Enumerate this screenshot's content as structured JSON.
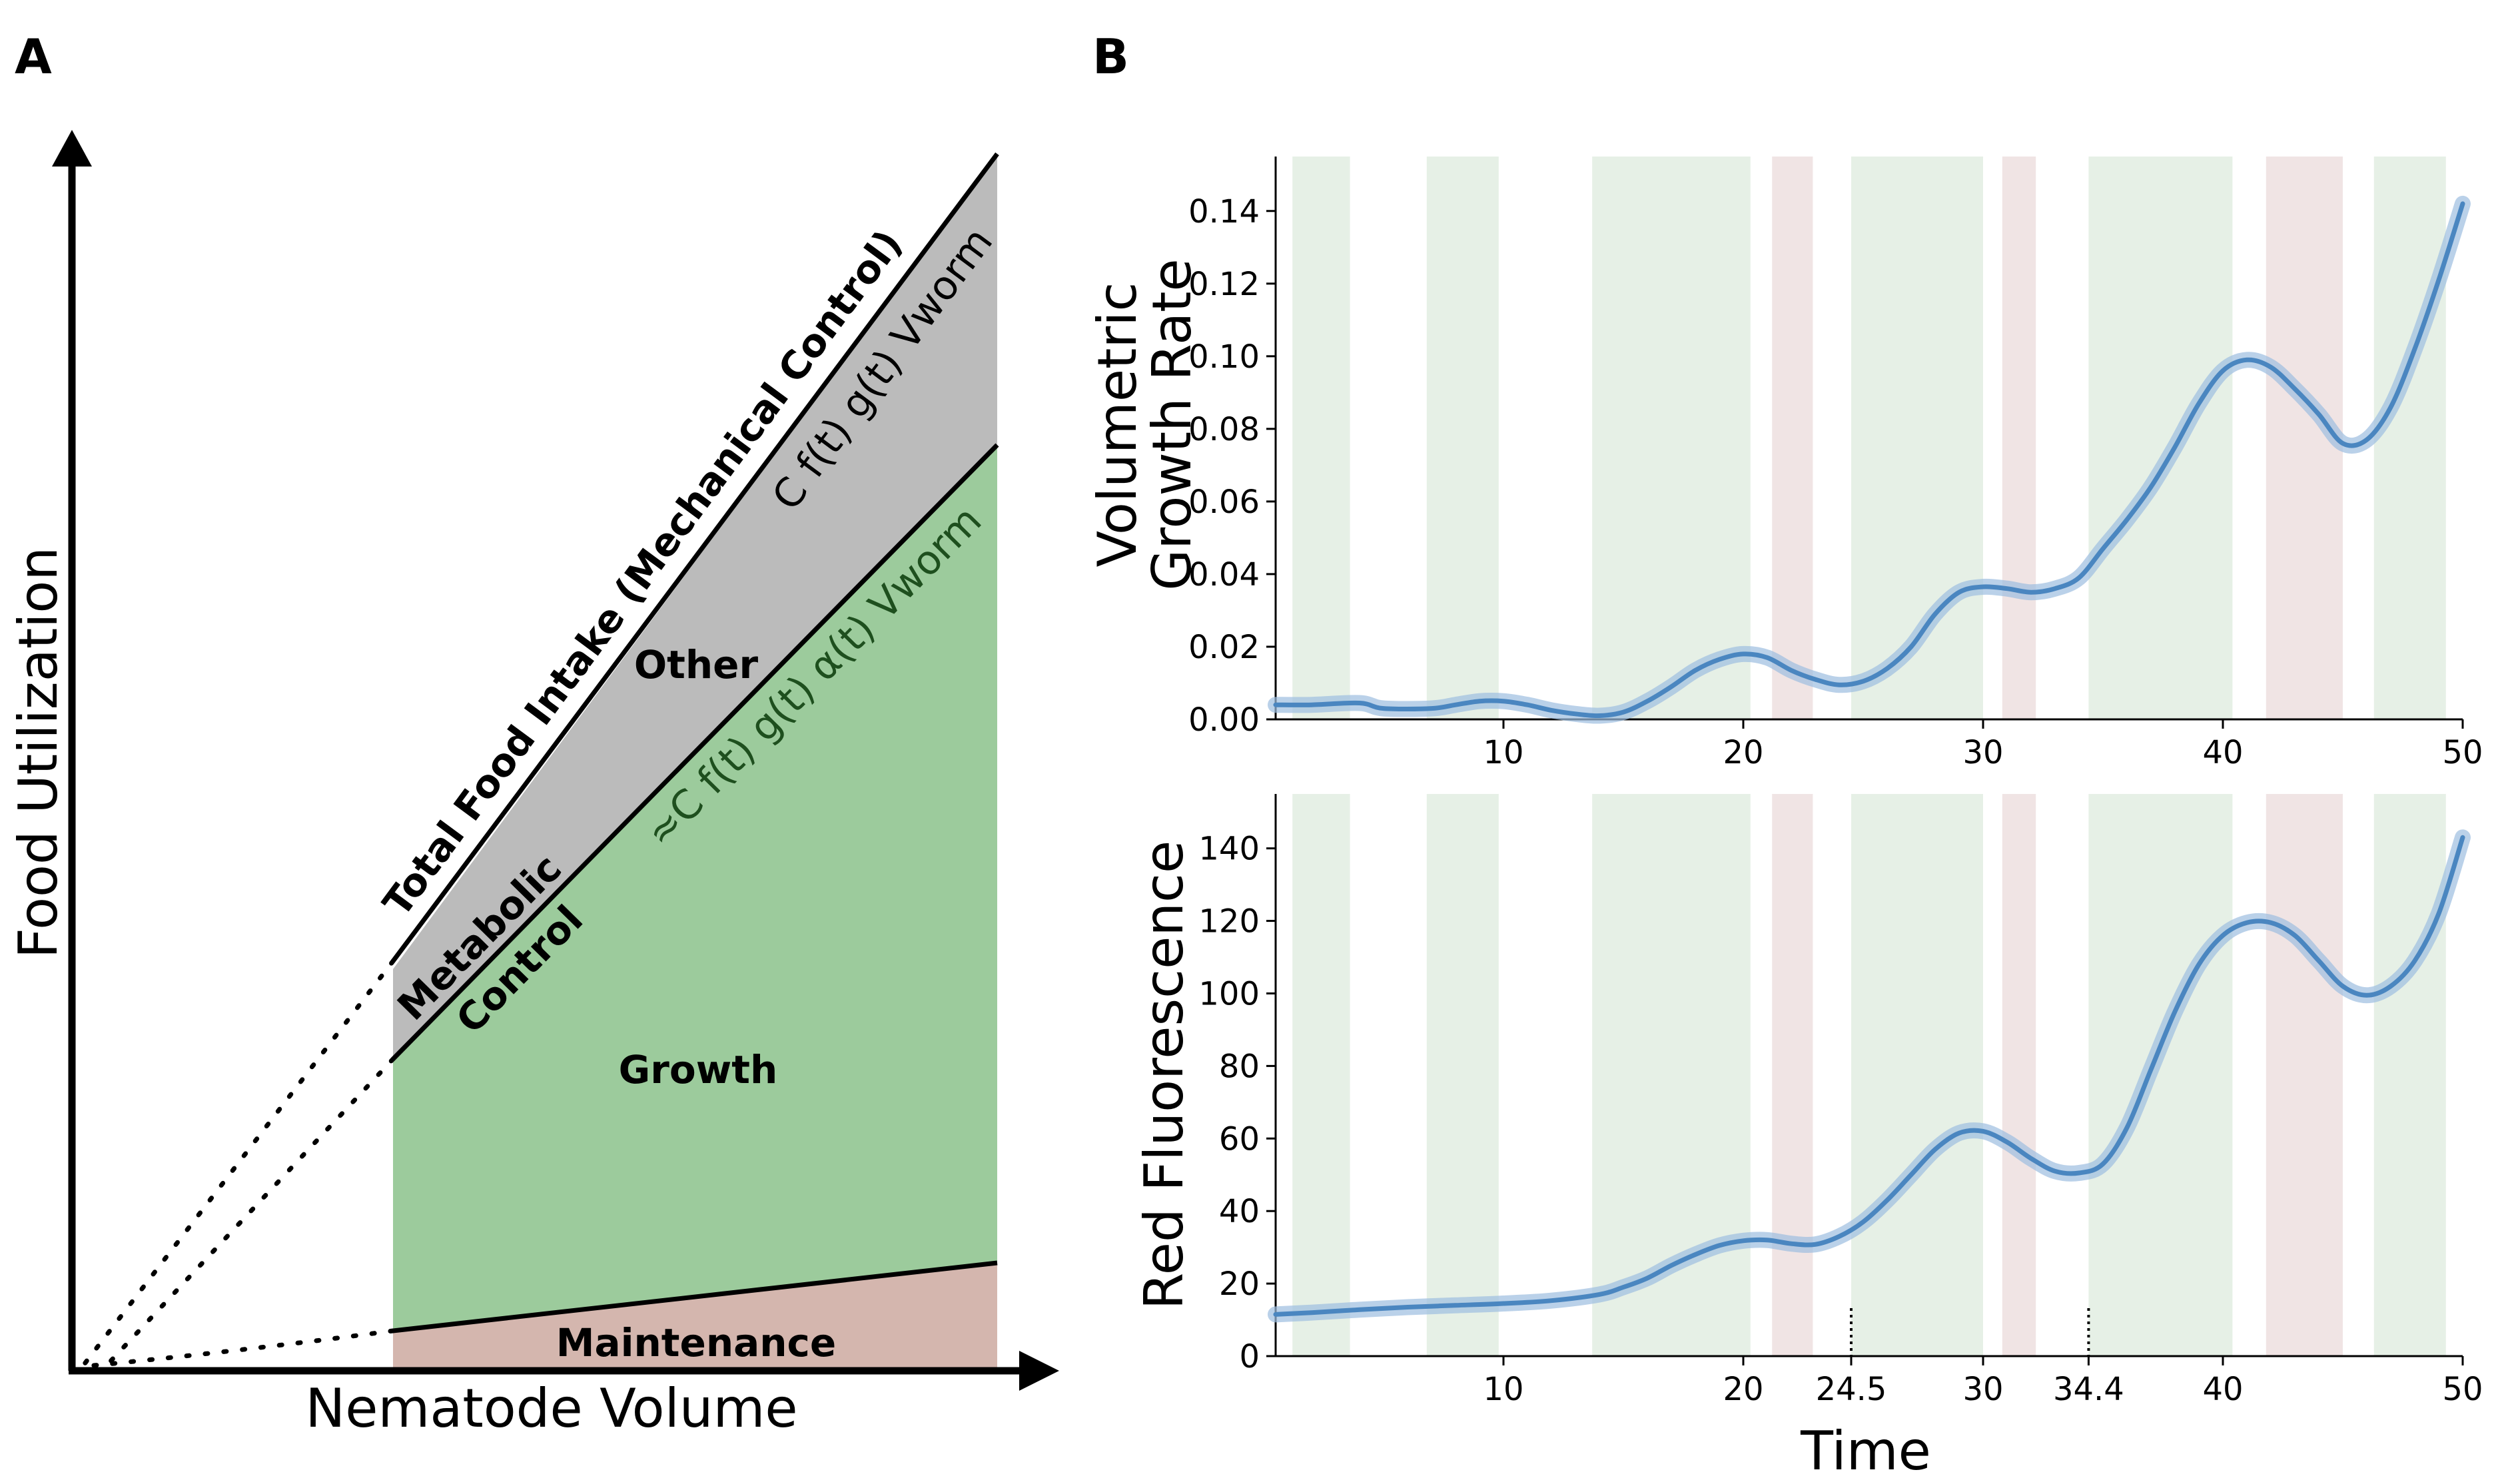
{
  "panel_a": {
    "letter": "A",
    "xlabel": "Nematode Volume",
    "ylabel": "Food Utilization",
    "regions": {
      "other": "Other",
      "growth": "Growth",
      "maintenance": "Maintenance"
    },
    "lines": {
      "total": "Total Food Intake (Mechanical Control)",
      "metabolic": "Metabolic",
      "control": "Control"
    },
    "formulas": {
      "total": "C f(t) g(t) Vworm",
      "growth": "≈C f(t) g(t) α(t) Vworm"
    },
    "colors": {
      "other": "#bbbbbb",
      "growth": "#9ccb9c",
      "maintenance": "#d4b6ae"
    }
  },
  "panel_b": {
    "letter": "B",
    "xlabel": "Time",
    "colors": {
      "line": "#4a86c0",
      "band": "#9dbde0",
      "green": "#e6f0e6",
      "red": "#f0e4e4"
    },
    "green_intervals": [
      [
        1.2,
        3.6
      ],
      [
        6.8,
        9.8
      ],
      [
        13.7,
        20.3
      ],
      [
        24.5,
        30.0
      ],
      [
        34.4,
        40.4
      ],
      [
        46.3,
        49.3
      ]
    ],
    "red_intervals": [
      [
        21.2,
        22.9
      ],
      [
        30.8,
        32.2
      ],
      [
        41.8,
        45.0
      ]
    ],
    "chart_data": [
      {
        "type": "line",
        "title": "",
        "xlabel": "",
        "ylabel": [
          "Volumetric",
          "Growth Rate"
        ],
        "xlim": [
          0.5,
          50
        ],
        "ylim": [
          0,
          0.155
        ],
        "xticks": [
          10,
          20,
          30,
          40,
          50
        ],
        "xtick_labels": [
          "10",
          "20",
          "30",
          "40",
          "50"
        ],
        "yticks": [
          0.0,
          0.02,
          0.04,
          0.06,
          0.08,
          0.1,
          0.12,
          0.14
        ],
        "ytick_labels": [
          "0.00",
          "0.02",
          "0.04",
          "0.06",
          "0.08",
          "0.10",
          "0.12",
          "0.14"
        ],
        "x": [
          0.5,
          2,
          4,
          5,
          7,
          8,
          9,
          10,
          11,
          12,
          13,
          14,
          15,
          16,
          17,
          18,
          19,
          20,
          21,
          22,
          23,
          24,
          25,
          26,
          27,
          28,
          29,
          30,
          31,
          32,
          33,
          34,
          35,
          36,
          37,
          38,
          39,
          40,
          41,
          42,
          43,
          44,
          45,
          46,
          47,
          48,
          49,
          50
        ],
        "y": [
          0.004,
          0.004,
          0.0045,
          0.003,
          0.003,
          0.004,
          0.005,
          0.005,
          0.004,
          0.0025,
          0.0015,
          0.001,
          0.002,
          0.005,
          0.009,
          0.0135,
          0.0165,
          0.018,
          0.017,
          0.0135,
          0.011,
          0.0095,
          0.0105,
          0.014,
          0.02,
          0.029,
          0.035,
          0.0365,
          0.036,
          0.035,
          0.036,
          0.039,
          0.047,
          0.055,
          0.064,
          0.075,
          0.087,
          0.096,
          0.099,
          0.097,
          0.091,
          0.084,
          0.076,
          0.077,
          0.086,
          0.102,
          0.121,
          0.142
        ]
      },
      {
        "type": "line",
        "title": "",
        "xlabel": "Time",
        "ylabel": [
          "Red Fluorescence"
        ],
        "xlim": [
          0.5,
          50
        ],
        "ylim": [
          0,
          155
        ],
        "xticks": [
          10,
          20,
          24.5,
          30,
          34.4,
          40,
          50
        ],
        "xtick_labels": [
          "10",
          "20",
          "24.5",
          "30",
          "34.4",
          "40",
          "50"
        ],
        "yticks": [
          0,
          20,
          40,
          60,
          80,
          100,
          120,
          140
        ],
        "ytick_labels": [
          "0",
          "20",
          "40",
          "60",
          "80",
          "100",
          "120",
          "140"
        ],
        "marked_times": [
          24.5,
          34.4
        ],
        "x": [
          0.5,
          2,
          4,
          6,
          8,
          10,
          12,
          14,
          15,
          16,
          17,
          18,
          19,
          20,
          21,
          22,
          23,
          24,
          25,
          26,
          27,
          28,
          29,
          30,
          31,
          32,
          33,
          34,
          35,
          36,
          37,
          38,
          39,
          40,
          41,
          42,
          43,
          44,
          45,
          46,
          47,
          48,
          49,
          50
        ],
        "y": [
          11.5,
          12,
          12.8,
          13.5,
          14,
          14.5,
          15.3,
          17,
          19,
          21.5,
          25,
          28,
          30.5,
          31.8,
          32,
          31,
          30.8,
          33,
          37,
          43,
          50,
          57,
          61.5,
          62,
          59,
          54.5,
          51,
          50.5,
          53,
          63,
          79,
          95,
          108,
          116,
          119.5,
          119.5,
          116,
          109,
          102,
          99.5,
          102,
          109,
          122,
          143
        ]
      }
    ]
  }
}
